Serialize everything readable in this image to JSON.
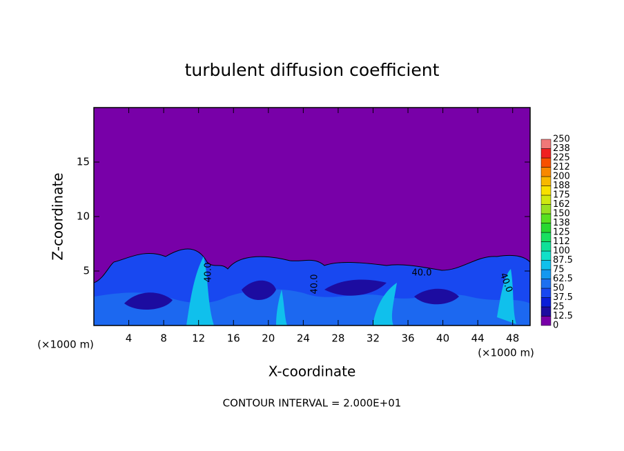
{
  "chart_data": {
    "type": "contour",
    "title": "turbulent diffusion coefficient",
    "xlabel": "X-coordinate",
    "ylabel": "Z-coordinate",
    "xunit": "(×1000 m)",
    "yunit": "(×1000 m)",
    "footer": "CONTOUR INTERVAL = 2.000E+01",
    "xlim": [
      0,
      50
    ],
    "xticks": [
      4,
      8,
      12,
      16,
      20,
      24,
      28,
      32,
      36,
      40,
      44,
      48
    ],
    "ylim": [
      0,
      20
    ],
    "yticks": [
      5,
      10,
      15
    ],
    "contour_labels": [
      "40.0",
      "40.0",
      "40.0",
      "40.0"
    ],
    "levels": [
      0,
      12.5,
      25,
      37.5,
      50,
      62.5,
      75,
      87.5,
      100,
      {
        "value": 112.5,
        "label": "112"
      },
      125,
      {
        "value": 137.5,
        "label": "138"
      },
      150,
      {
        "value": 162.5,
        "label": "162"
      },
      175,
      {
        "value": 187.5,
        "label": "188"
      },
      200,
      {
        "value": 212.5,
        "label": "212"
      },
      225,
      {
        "value": 237.5,
        "label": "238"
      },
      250
    ],
    "colors": [
      "#7800a8",
      "#1c0ca0",
      "#0a1ed8",
      "#1848f0",
      "#1e70f0",
      "#1498f0",
      "#10c0ec",
      "#10e0c8",
      "#10e098",
      "#18e060",
      "#28d830",
      "#58e020",
      "#98e020",
      "#d0e810",
      "#f8e000",
      "#f8b800",
      "#f88800",
      "#f85000",
      "#f02020",
      "#f07878"
    ]
  }
}
